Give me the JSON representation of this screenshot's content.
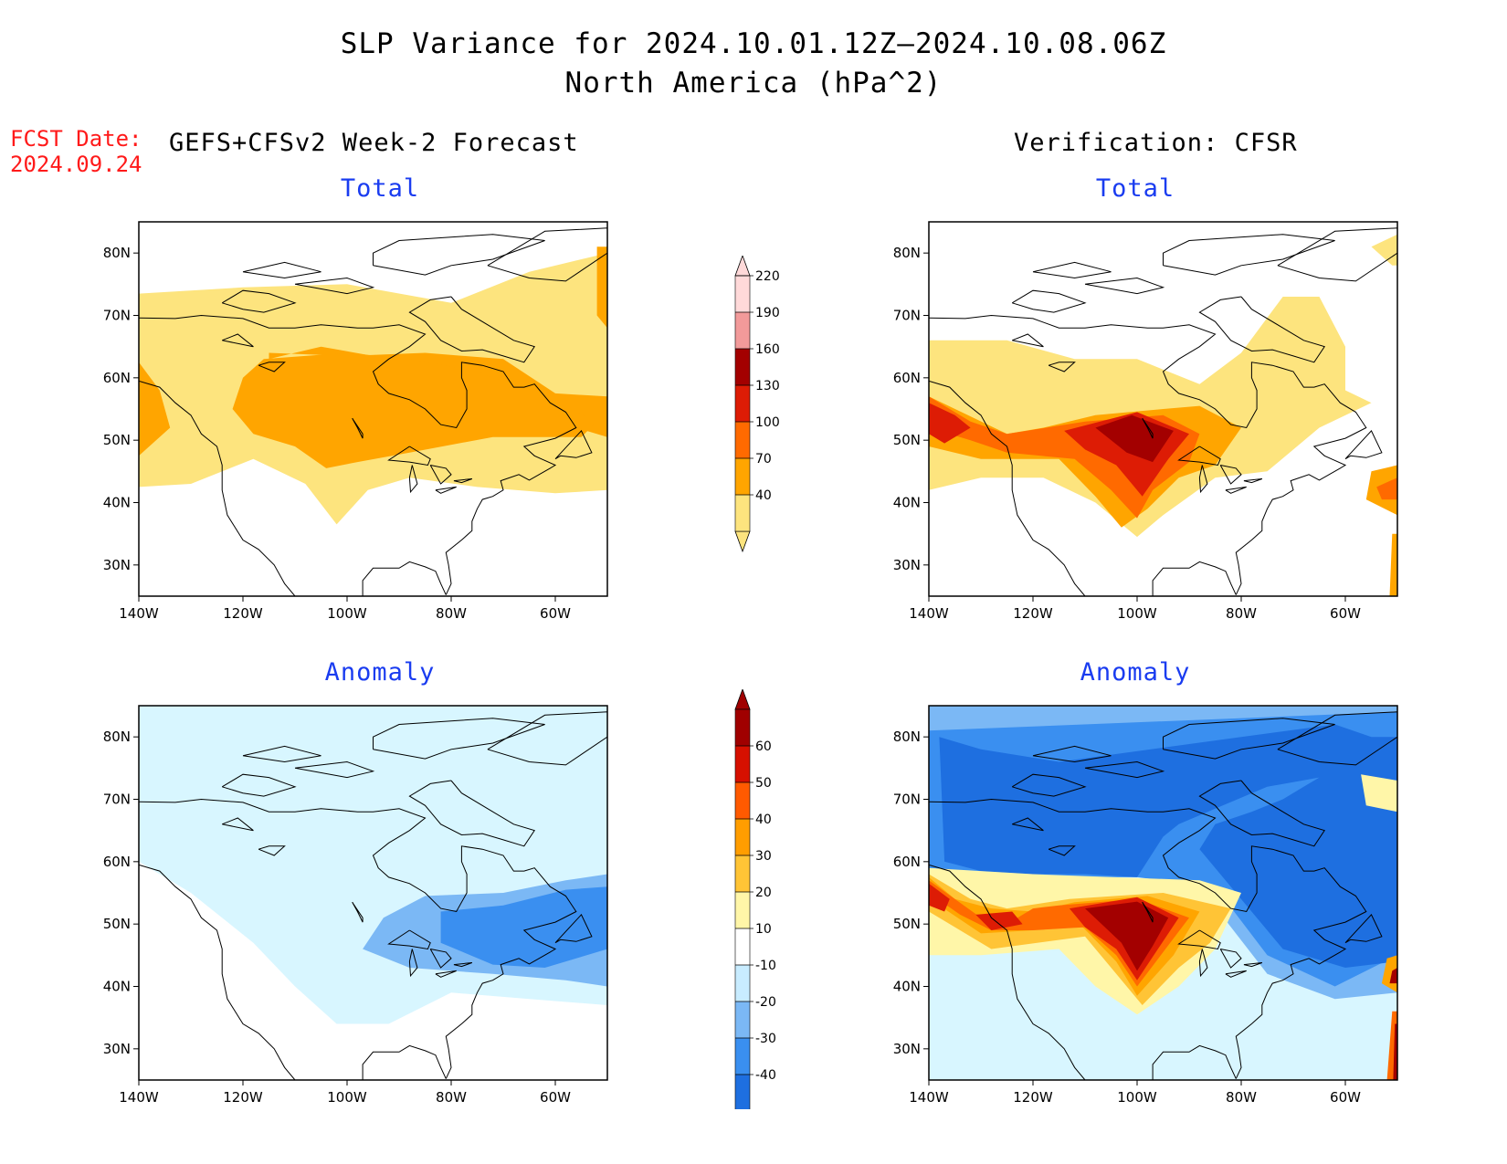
{
  "title": {
    "line1": "SLP Variance for 2024.10.01.12Z–2024.10.08.06Z",
    "line2": "North America (hPa^2)"
  },
  "fcst_date": {
    "label": "FCST Date:",
    "value": "2024.09.24"
  },
  "left_header": "GEFS+CFSv2 Week-2 Forecast",
  "right_header": "Verification: CFSR",
  "panels": {
    "fcst_total": {
      "title": "Total"
    },
    "fcst_anom": {
      "title": "Anomaly"
    },
    "ver_total": {
      "title": "Total"
    },
    "ver_anom": {
      "title": "Anomaly"
    }
  },
  "axes": {
    "lon_labels": [
      "140W",
      "120W",
      "100W",
      "80W",
      "60W"
    ],
    "lat_labels": [
      "80N",
      "70N",
      "60N",
      "50N",
      "40N",
      "30N"
    ]
  },
  "colorbar_total": {
    "levels": [
      "40",
      "70",
      "100",
      "130",
      "160",
      "190",
      "220"
    ],
    "colors": [
      "#fde47e",
      "#ffa500",
      "#ff6a00",
      "#dd1c05",
      "#a30000",
      "#f29a9a",
      "#ffd9d9"
    ]
  },
  "colorbar_anom": {
    "levels": [
      "-40",
      "-30",
      "-20",
      "-10",
      "10",
      "20",
      "30",
      "40",
      "50",
      "60"
    ],
    "colors": [
      "#1e6fe0",
      "#3a8ff0",
      "#7bb8f5",
      "#c8ecff",
      "#ffffff",
      "#fff6a8",
      "#ffc436",
      "#ff9d00",
      "#ff5a00",
      "#d61000",
      "#a00000"
    ]
  },
  "fill_colors": {
    "yellow": "#fde47e",
    "orange": "#ffa500",
    "dorange": "#ff6a00",
    "red": "#dd1c05",
    "dred": "#a30000",
    "pink": "#f29a9a",
    "lightcyan": "#d8f6ff",
    "lightblue": "#7bb8f5",
    "blue": "#3a8ff0",
    "dblue": "#1e6fe0",
    "ylw": "#fff6a8",
    "gold": "#ffc436"
  }
}
